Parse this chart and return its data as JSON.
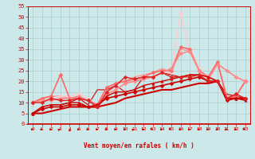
{
  "bg_color": "#cce8e8",
  "grid_color": "#aacece",
  "xlabel": "Vent moyen/en rafales ( km/h )",
  "xlabel_color": "#cc0000",
  "tick_color": "#cc0000",
  "arrow_color": "#cc0000",
  "xlim": [
    -0.5,
    23.5
  ],
  "ylim": [
    0,
    55
  ],
  "yticks": [
    0,
    5,
    10,
    15,
    20,
    25,
    30,
    35,
    40,
    45,
    50,
    55
  ],
  "xticks": [
    0,
    1,
    2,
    3,
    4,
    5,
    6,
    7,
    8,
    9,
    10,
    11,
    12,
    13,
    14,
    15,
    16,
    17,
    18,
    19,
    20,
    21,
    22,
    23
  ],
  "lines": [
    {
      "x": [
        0,
        1,
        2,
        3,
        4,
        5,
        6,
        7,
        8,
        9,
        10,
        11,
        12,
        13,
        14,
        15,
        16,
        17,
        18,
        19,
        20,
        21,
        22,
        23
      ],
      "y": [
        5,
        5,
        6,
        7,
        8,
        8,
        8,
        8,
        9,
        10,
        12,
        13,
        14,
        15,
        16,
        16,
        17,
        18,
        19,
        19,
        20,
        12,
        12,
        12
      ],
      "color": "#cc0000",
      "lw": 1.5,
      "marker": null,
      "ms": 0,
      "zorder": 5
    },
    {
      "x": [
        0,
        1,
        2,
        3,
        4,
        5,
        6,
        7,
        8,
        9,
        10,
        11,
        12,
        13,
        14,
        15,
        16,
        17,
        18,
        19,
        20,
        21,
        22,
        23
      ],
      "y": [
        5,
        7,
        8,
        8,
        9,
        9,
        8,
        9,
        12,
        13,
        14,
        15,
        16,
        17,
        18,
        19,
        20,
        21,
        22,
        20,
        20,
        11,
        12,
        12
      ],
      "color": "#cc0000",
      "lw": 1.2,
      "marker": "D",
      "ms": 2.5,
      "zorder": 6
    },
    {
      "x": [
        0,
        1,
        2,
        3,
        4,
        5,
        6,
        7,
        8,
        9,
        10,
        11,
        12,
        13,
        14,
        15,
        16,
        17,
        18,
        19,
        20,
        21,
        22,
        23
      ],
      "y": [
        5,
        8,
        9,
        9,
        10,
        10,
        8,
        8,
        13,
        15,
        15,
        16,
        18,
        19,
        20,
        21,
        22,
        23,
        23,
        22,
        20,
        12,
        12,
        11
      ],
      "color": "#cc0000",
      "lw": 1.0,
      "marker": "^",
      "ms": 2.5,
      "zorder": 6
    },
    {
      "x": [
        0,
        1,
        2,
        3,
        4,
        5,
        6,
        7,
        8,
        9,
        10,
        11,
        12,
        13,
        14,
        15,
        16,
        17,
        18,
        19,
        20,
        21,
        22,
        23
      ],
      "y": [
        10,
        10,
        12,
        11,
        11,
        12,
        11,
        8,
        15,
        18,
        22,
        21,
        22,
        22,
        24,
        22,
        22,
        22,
        23,
        20,
        20,
        12,
        14,
        12
      ],
      "color": "#dd2222",
      "lw": 1.0,
      "marker": "D",
      "ms": 2.5,
      "zorder": 6
    },
    {
      "x": [
        0,
        1,
        2,
        3,
        4,
        5,
        6,
        7,
        8,
        9,
        10,
        11,
        12,
        13,
        14,
        15,
        16,
        17,
        18,
        19,
        20,
        21,
        22,
        23
      ],
      "y": [
        5,
        8,
        9,
        9,
        10,
        12,
        9,
        16,
        16,
        18,
        15,
        16,
        22,
        22,
        24,
        23,
        22,
        23,
        23,
        22,
        20,
        14,
        13,
        12
      ],
      "color": "#cc0000",
      "lw": 0.8,
      "marker": null,
      "ms": 0,
      "zorder": 4
    },
    {
      "x": [
        0,
        1,
        2,
        3,
        4,
        5,
        6,
        7,
        8,
        9,
        10,
        11,
        12,
        13,
        14,
        15,
        16,
        17,
        18,
        19,
        20,
        21,
        22,
        23
      ],
      "y": [
        10,
        12,
        13,
        23,
        12,
        12,
        11,
        9,
        17,
        19,
        20,
        21,
        22,
        24,
        25,
        25,
        36,
        35,
        25,
        22,
        29,
        12,
        13,
        20
      ],
      "color": "#ff6666",
      "lw": 1.2,
      "marker": "D",
      "ms": 2.5,
      "zorder": 5
    },
    {
      "x": [
        0,
        1,
        2,
        3,
        4,
        5,
        6,
        7,
        8,
        9,
        10,
        11,
        12,
        13,
        14,
        15,
        16,
        17,
        18,
        19,
        20,
        21,
        22,
        23
      ],
      "y": [
        10,
        12,
        13,
        13,
        12,
        12,
        11,
        9,
        17,
        19,
        20,
        22,
        23,
        24,
        26,
        24,
        35,
        34,
        25,
        22,
        29,
        13,
        13,
        20
      ],
      "color": "#ff9999",
      "lw": 1.0,
      "marker": null,
      "ms": 0,
      "zorder": 4
    },
    {
      "x": [
        0,
        1,
        2,
        3,
        4,
        5,
        6,
        7,
        8,
        9,
        10,
        11,
        12,
        13,
        14,
        15,
        16,
        17,
        18,
        19,
        20,
        21,
        22,
        23
      ],
      "y": [
        10,
        11,
        11,
        12,
        12,
        13,
        11,
        8,
        14,
        16,
        19,
        20,
        21,
        22,
        24,
        26,
        33,
        34,
        25,
        21,
        28,
        25,
        22,
        20
      ],
      "color": "#ff8888",
      "lw": 1.2,
      "marker": "D",
      "ms": 2.5,
      "zorder": 5
    },
    {
      "x": [
        0,
        1,
        2,
        3,
        4,
        5,
        6,
        7,
        8,
        9,
        10,
        11,
        12,
        13,
        14,
        15,
        16,
        17,
        18,
        19,
        20,
        21,
        22,
        23
      ],
      "y": [
        10,
        11,
        12,
        13,
        13,
        14,
        12,
        9,
        14,
        16,
        19,
        20,
        21,
        22,
        24,
        24,
        52,
        35,
        26,
        21,
        28,
        25,
        22,
        20
      ],
      "color": "#ffcccc",
      "lw": 1.0,
      "marker": "D",
      "ms": 2.5,
      "zorder": 4
    }
  ],
  "arrows": {
    "color": "#cc0000",
    "directions": [
      0,
      0,
      0,
      45,
      90,
      0,
      0,
      0,
      0,
      0,
      0,
      45,
      0,
      315,
      0,
      315,
      0,
      0,
      0,
      0,
      0,
      0,
      0,
      315
    ]
  }
}
